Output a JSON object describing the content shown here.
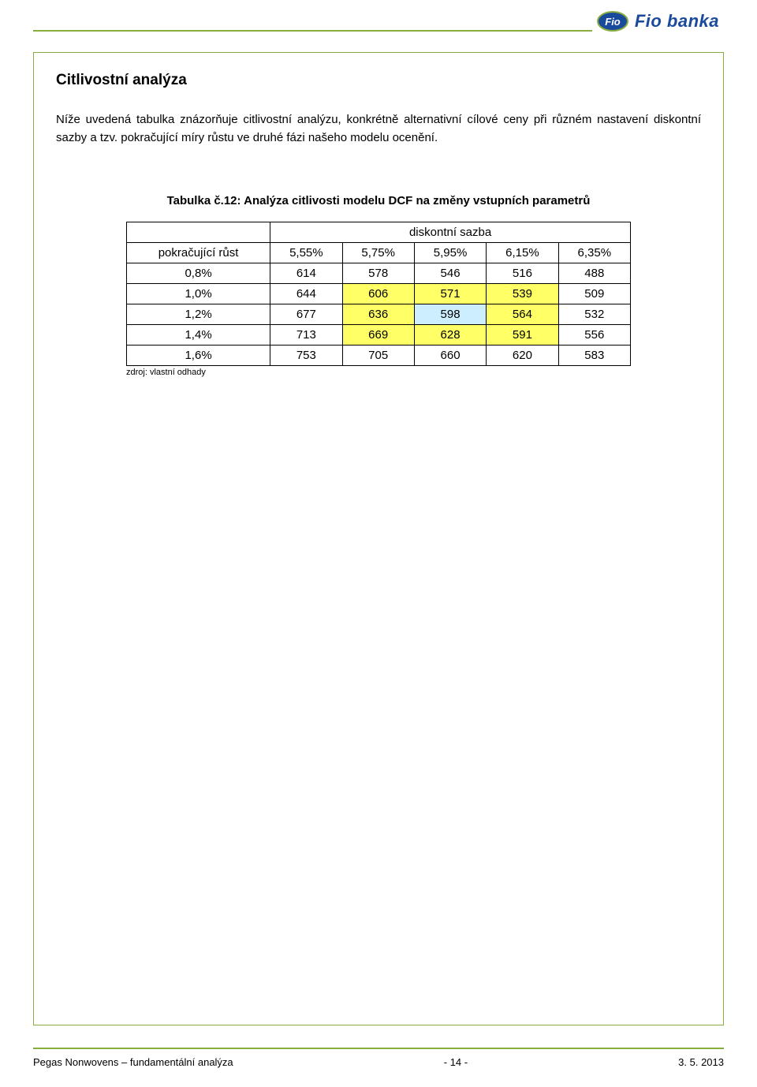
{
  "brand": {
    "name": "Fio banka",
    "logo_label": "Fio",
    "accent_color": "#8aad3f",
    "brand_blue": "#1a4a9c"
  },
  "section": {
    "title": "Citlivostní analýza",
    "body": "Níže uvedená tabulka znázorňuje citlivostní analýzu, konkrétně alternativní cílové ceny při různém nastavení diskontní sazby a tzv. pokračující míry růstu ve druhé fázi našeho modelu ocenění."
  },
  "table": {
    "caption": "Tabulka č.12: Analýza citlivosti modelu DCF na změny vstupních parametrů",
    "col_group_label": "diskontní sazba",
    "row_header_label": "pokračující růst",
    "columns": [
      "5,55%",
      "5,75%",
      "5,95%",
      "6,15%",
      "6,35%"
    ],
    "rows": [
      {
        "label": "0,8%",
        "values": [
          "614",
          "578",
          "546",
          "516",
          "488"
        ],
        "highlights": [
          null,
          null,
          null,
          null,
          null
        ]
      },
      {
        "label": "1,0%",
        "values": [
          "644",
          "606",
          "571",
          "539",
          "509"
        ],
        "highlights": [
          null,
          "yellow",
          "yellow",
          "yellow",
          null
        ]
      },
      {
        "label": "1,2%",
        "values": [
          "677",
          "636",
          "598",
          "564",
          "532"
        ],
        "highlights": [
          null,
          "yellow",
          "blue",
          "yellow",
          null
        ]
      },
      {
        "label": "1,4%",
        "values": [
          "713",
          "669",
          "628",
          "591",
          "556"
        ],
        "highlights": [
          null,
          "yellow",
          "yellow",
          "yellow",
          null
        ]
      },
      {
        "label": "1,6%",
        "values": [
          "753",
          "705",
          "660",
          "620",
          "583"
        ],
        "highlights": [
          null,
          null,
          null,
          null,
          null
        ]
      }
    ],
    "source": "zdroj: vlastní odhady",
    "highlight_colors": {
      "yellow": "#ffff66",
      "blue": "#cceeff"
    }
  },
  "footer": {
    "left": "Pegas Nonwovens – fundamentální analýza",
    "center": "- 14 -",
    "right": "3. 5. 2013"
  }
}
